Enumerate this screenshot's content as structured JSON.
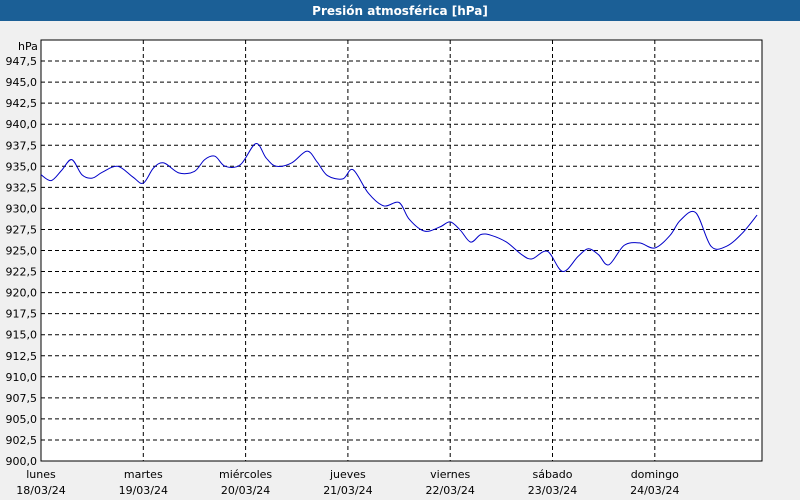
{
  "chart_data": {
    "type": "line",
    "title": "Presión atmosférica [hPa]",
    "ylabel": "hPa",
    "xlabel": "",
    "ylim": [
      900.0,
      950.0
    ],
    "yticks": [
      "900,0",
      "902,5",
      "905,0",
      "907,5",
      "910,0",
      "912,5",
      "915,0",
      "917,5",
      "920,0",
      "922,5",
      "925,0",
      "927,5",
      "930,0",
      "932,5",
      "935,0",
      "937,5",
      "940,0",
      "942,5",
      "945,0",
      "947,5"
    ],
    "day_ticks": [
      {
        "day": "lunes",
        "date": "18/03/24"
      },
      {
        "day": "martes",
        "date": "19/03/24"
      },
      {
        "day": "miércoles",
        "date": "20/03/24"
      },
      {
        "day": "jueves",
        "date": "21/03/24"
      },
      {
        "day": "viernes",
        "date": "22/03/24"
      },
      {
        "day": "sábado",
        "date": "23/03/24"
      },
      {
        "day": "domingo",
        "date": "24/03/24"
      }
    ],
    "xlim_days": [
      0,
      7.0
    ],
    "grid": true,
    "series": [
      {
        "color": "#0000c8",
        "x": [
          0.0,
          0.1,
          0.2,
          0.3,
          0.4,
          0.5,
          0.6,
          0.75,
          0.9,
          1.0,
          1.1,
          1.2,
          1.35,
          1.5,
          1.6,
          1.7,
          1.8,
          1.95,
          2.1,
          2.2,
          2.3,
          2.45,
          2.6,
          2.7,
          2.8,
          2.95,
          3.05,
          3.2,
          3.35,
          3.5,
          3.6,
          3.75,
          3.9,
          4.0,
          4.1,
          4.2,
          4.3,
          4.4,
          4.55,
          4.7,
          4.8,
          4.95,
          5.1,
          5.25,
          5.35,
          5.45,
          5.55,
          5.7,
          5.85,
          6.0,
          6.15,
          6.25,
          6.4,
          6.55,
          6.7,
          6.85,
          7.0
        ],
        "y": [
          934.0,
          933.3,
          934.5,
          935.8,
          934.0,
          933.6,
          934.3,
          935.0,
          933.7,
          933.0,
          934.8,
          935.4,
          934.2,
          934.4,
          935.8,
          936.2,
          935.0,
          935.2,
          937.7,
          936.0,
          935.0,
          935.4,
          936.8,
          935.5,
          933.9,
          933.5,
          934.6,
          931.8,
          930.3,
          930.7,
          928.7,
          927.3,
          927.8,
          928.4,
          927.4,
          926.0,
          926.9,
          926.8,
          926.0,
          924.5,
          924.0,
          924.9,
          922.5,
          924.3,
          925.2,
          924.5,
          923.3,
          925.6,
          925.9,
          925.3,
          926.8,
          928.6,
          929.5,
          925.5,
          925.5,
          927.0,
          929.2
        ]
      }
    ]
  }
}
